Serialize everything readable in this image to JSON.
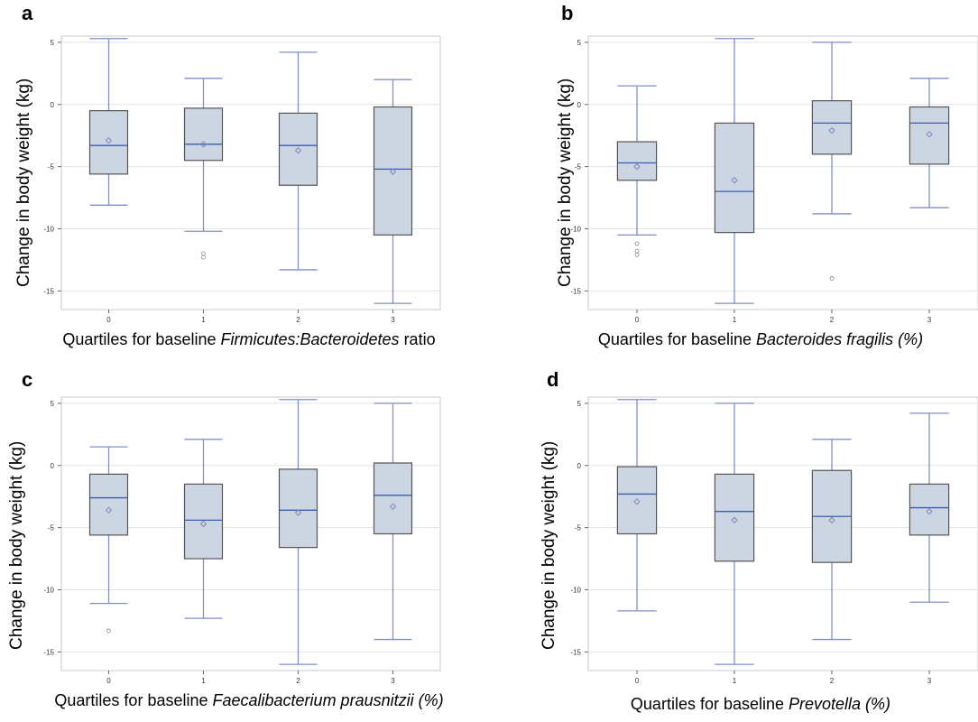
{
  "colors": {
    "box_fill": "#ccd5e2",
    "box_edge": "#555555",
    "whisker": "#7f8fcc",
    "median": "#3a5bb4",
    "mean_marker": "#7b86bd",
    "outlier": "#888888",
    "grid": "#e3e3e3",
    "frame": "#c8c8c8"
  },
  "chart_data": [
    {
      "panel": "a",
      "type": "box",
      "ylabel": "Change in body weight (kg)",
      "xlabel_parts": [
        {
          "text": "Quartiles for baseline ",
          "italic": false
        },
        {
          "text": "Firmicutes:Bacteroidetes",
          "italic": true
        },
        {
          "text": " ratio",
          "italic": false
        }
      ],
      "categories": [
        "0",
        "1",
        "2",
        "3"
      ],
      "yticks": [
        5,
        0,
        -5,
        -10,
        -15
      ],
      "ylim": [
        -16.5,
        5.5
      ],
      "grid": true,
      "boxes": [
        {
          "min": -8.1,
          "q1": -5.6,
          "median": -3.3,
          "q3": -0.5,
          "max": 5.3,
          "mean": -2.9,
          "outliers": []
        },
        {
          "min": -10.2,
          "q1": -4.5,
          "median": -3.2,
          "q3": -0.3,
          "max": 2.1,
          "mean": -3.2,
          "outliers": [
            -12.0,
            -12.3
          ]
        },
        {
          "min": -13.3,
          "q1": -6.5,
          "median": -3.3,
          "q3": -0.7,
          "max": 4.2,
          "mean": -3.7,
          "outliers": []
        },
        {
          "min": -16.0,
          "q1": -10.5,
          "median": -5.2,
          "q3": -0.2,
          "max": 2.0,
          "mean": -5.4,
          "outliers": []
        }
      ]
    },
    {
      "panel": "b",
      "type": "box",
      "ylabel": "Change in body weight (kg)",
      "xlabel_parts": [
        {
          "text": "Quartiles for baseline ",
          "italic": false
        },
        {
          "text": "Bacteroides fragilis (%)",
          "italic": true
        }
      ],
      "categories": [
        "0",
        "1",
        "2",
        "3"
      ],
      "yticks": [
        5,
        0,
        -5,
        -10,
        -15
      ],
      "ylim": [
        -16.5,
        5.5
      ],
      "grid": true,
      "boxes": [
        {
          "min": -10.5,
          "q1": -6.1,
          "median": -4.7,
          "q3": -3.0,
          "max": 1.5,
          "mean": -5.0,
          "outliers": [
            -11.2,
            -11.8,
            -12.1
          ]
        },
        {
          "min": -16.0,
          "q1": -10.3,
          "median": -7.0,
          "q3": -1.5,
          "max": 5.3,
          "mean": -6.1,
          "outliers": []
        },
        {
          "min": -8.8,
          "q1": -4.0,
          "median": -1.5,
          "q3": 0.3,
          "max": 5.0,
          "mean": -2.1,
          "outliers": [
            -14.0
          ]
        },
        {
          "min": -8.3,
          "q1": -4.8,
          "median": -1.5,
          "q3": -0.2,
          "max": 2.1,
          "mean": -2.4,
          "outliers": []
        }
      ]
    },
    {
      "panel": "c",
      "type": "box",
      "ylabel": "Change in body weight (kg)",
      "xlabel_parts": [
        {
          "text": "Quartiles for baseline ",
          "italic": false
        },
        {
          "text": "Faecalibacterium prausnitzii (%)",
          "italic": true
        }
      ],
      "categories": [
        "0",
        "1",
        "2",
        "3"
      ],
      "yticks": [
        5,
        0,
        -5,
        -10,
        -15
      ],
      "ylim": [
        -16.5,
        5.5
      ],
      "grid": true,
      "boxes": [
        {
          "min": -11.1,
          "q1": -5.6,
          "median": -2.6,
          "q3": -0.7,
          "max": 1.5,
          "mean": -3.6,
          "outliers": [
            -13.3
          ]
        },
        {
          "min": -12.3,
          "q1": -7.5,
          "median": -4.4,
          "q3": -1.5,
          "max": 2.1,
          "mean": -4.7,
          "outliers": []
        },
        {
          "min": -16.0,
          "q1": -6.6,
          "median": -3.6,
          "q3": -0.3,
          "max": 5.3,
          "mean": -3.8,
          "outliers": []
        },
        {
          "min": -14.0,
          "q1": -5.5,
          "median": -2.4,
          "q3": 0.2,
          "max": 5.0,
          "mean": -3.3,
          "outliers": []
        }
      ]
    },
    {
      "panel": "d",
      "type": "box",
      "ylabel": "Change in body weight (kg)",
      "xlabel_parts": [
        {
          "text": "Quartiles for baseline ",
          "italic": false
        },
        {
          "text": "Prevotella (%)",
          "italic": true
        }
      ],
      "categories": [
        "0",
        "1",
        "2",
        "3"
      ],
      "yticks": [
        5,
        0,
        -5,
        -10,
        -15
      ],
      "ylim": [
        -16.5,
        5.5
      ],
      "grid": true,
      "boxes": [
        {
          "min": -11.7,
          "q1": -5.5,
          "median": -2.3,
          "q3": -0.1,
          "max": 5.3,
          "mean": -2.9,
          "outliers": []
        },
        {
          "min": -16.0,
          "q1": -7.7,
          "median": -3.7,
          "q3": -0.7,
          "max": 5.0,
          "mean": -4.4,
          "outliers": []
        },
        {
          "min": -14.0,
          "q1": -7.8,
          "median": -4.1,
          "q3": -0.4,
          "max": 2.1,
          "mean": -4.4,
          "outliers": []
        },
        {
          "min": -11.0,
          "q1": -5.6,
          "median": -3.4,
          "q3": -1.5,
          "max": 4.2,
          "mean": -3.7,
          "outliers": []
        }
      ]
    }
  ]
}
